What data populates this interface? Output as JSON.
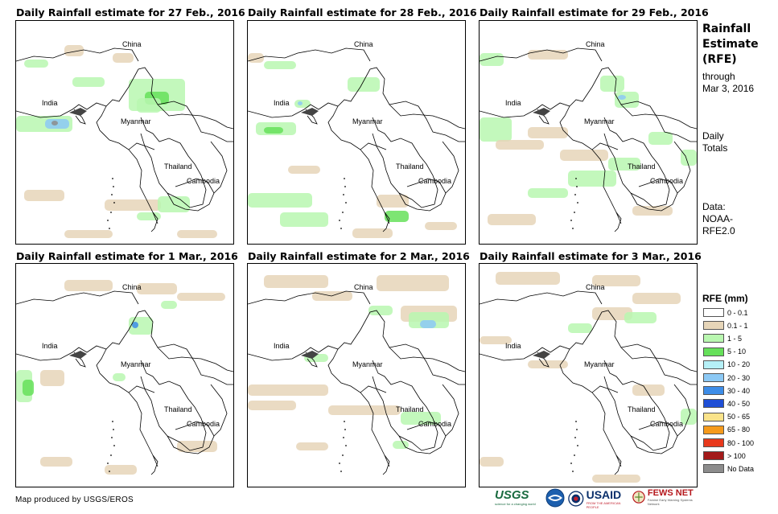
{
  "panels": [
    {
      "title": "Daily Rainfall estimate for 27 Feb., 2016"
    },
    {
      "title": "Daily Rainfall estimate for 28 Feb., 2016"
    },
    {
      "title": "Daily Rainfall estimate for 29 Feb., 2016"
    },
    {
      "title": "Daily Rainfall estimate for 1 Mar., 2016"
    },
    {
      "title": "Daily Rainfall estimate for 2 Mar., 2016"
    },
    {
      "title": "Daily Rainfall estimate for 3 Mar., 2016"
    }
  ],
  "map_labels": {
    "china": "China",
    "india": "India",
    "myanmar": "Myanmar",
    "thailand": "Thailand",
    "cambodia": "Cambodia"
  },
  "sidebar": {
    "title_line1": "Rainfall",
    "title_line2": "Estimate",
    "title_line3": "(RFE)",
    "through": "through",
    "date": "Mar 3, 2016",
    "daily": "Daily",
    "totals": "Totals",
    "data_label": "Data:",
    "data_source1": "NOAA-",
    "data_source2": "RFE2.0"
  },
  "legend": {
    "title": "RFE (mm)",
    "items": [
      {
        "label": "0 - 0.1",
        "color": "#ffffff"
      },
      {
        "label": "0.1 - 1",
        "color": "#e6d5b8"
      },
      {
        "label": "1 - 5",
        "color": "#b9f7b0"
      },
      {
        "label": "5 - 10",
        "color": "#66e05a"
      },
      {
        "label": "10 - 20",
        "color": "#b5f0f7"
      },
      {
        "label": "20 - 30",
        "color": "#8cc9f5"
      },
      {
        "label": "30 - 40",
        "color": "#3d8de8"
      },
      {
        "label": "40 - 50",
        "color": "#1f4fd6"
      },
      {
        "label": "50 - 65",
        "color": "#fae38a"
      },
      {
        "label": "65 - 80",
        "color": "#f59a1c"
      },
      {
        "label": "80 - 100",
        "color": "#e8391c"
      },
      {
        "label": "> 100",
        "color": "#a31a1a"
      },
      {
        "label": "No Data",
        "color": "#8c8c8c"
      }
    ]
  },
  "footer": {
    "credit": "Map produced by USGS/EROS",
    "logo_usgs": "USGS",
    "logo_usgs_tag": "science for a changing world",
    "logo_usaid": "USAID",
    "logo_usaid_tag": "FROM THE AMERICAN PEOPLE",
    "logo_fews": "FEWS NET",
    "logo_fews_tag": "Famine Early Warning Systems Network"
  }
}
